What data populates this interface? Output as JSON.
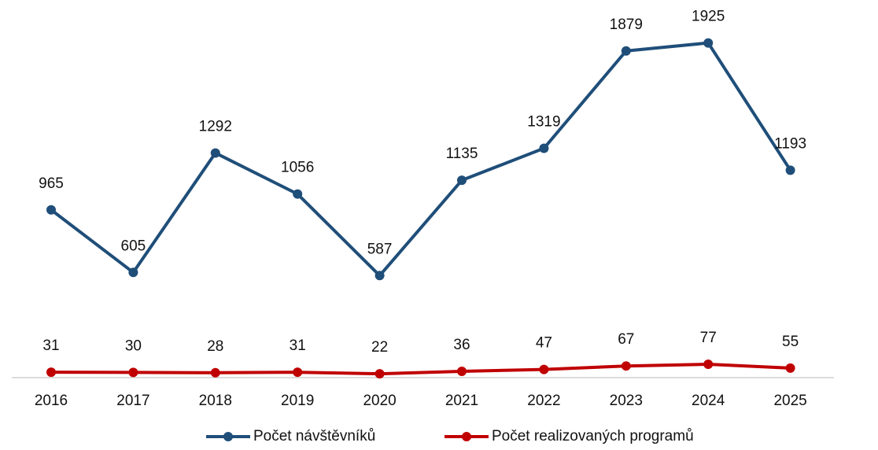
{
  "chart_data": {
    "type": "line",
    "x": [
      "2016",
      "2017",
      "2018",
      "2019",
      "2020",
      "2021",
      "2022",
      "2023",
      "2024",
      "2025"
    ],
    "series": [
      {
        "name": "Počet návštěvníků",
        "color": "#1f4e79",
        "values": [
          965,
          605,
          1292,
          1056,
          587,
          1135,
          1319,
          1879,
          1925,
          1193
        ]
      },
      {
        "name": "Počet realizovaných programů",
        "color": "#c00000",
        "values": [
          31,
          30,
          28,
          31,
          22,
          36,
          47,
          67,
          77,
          55
        ]
      }
    ],
    "ylim": [
      0,
      2000
    ]
  }
}
